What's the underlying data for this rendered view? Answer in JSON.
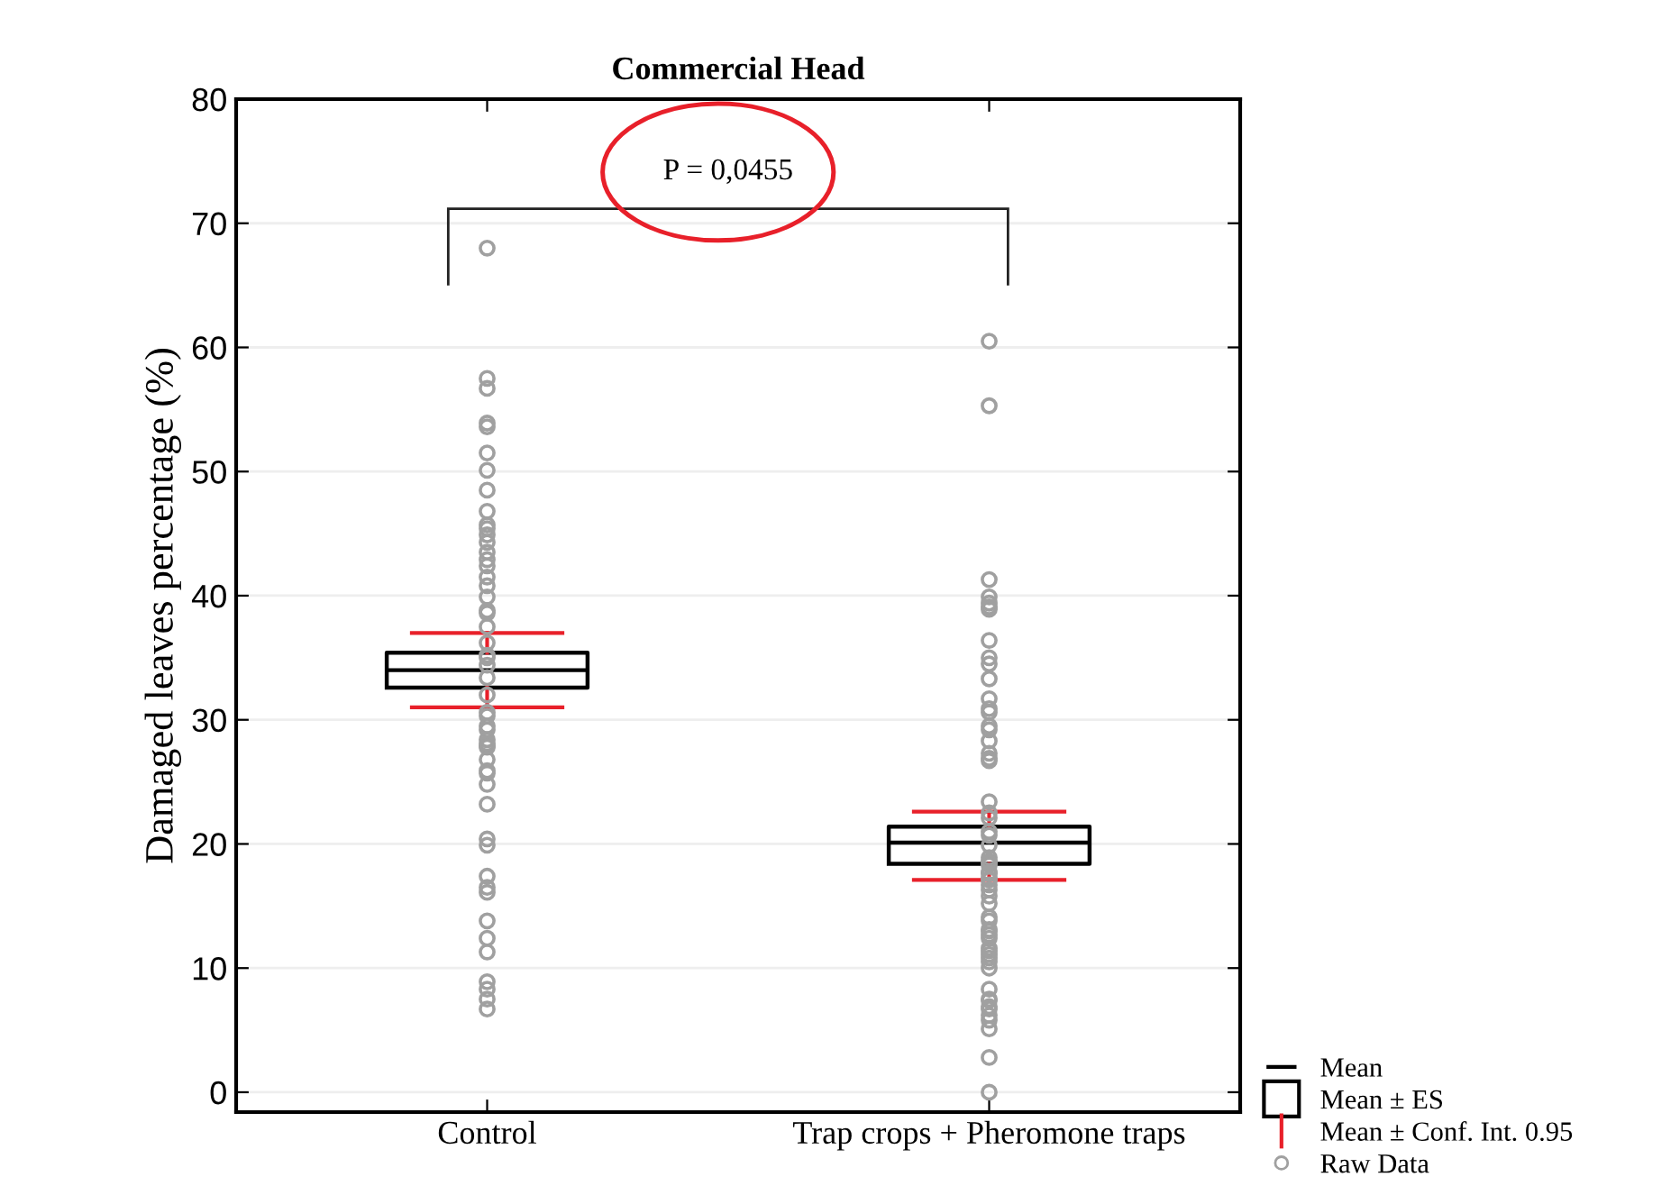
{
  "chart_data": {
    "type": "box",
    "title": "Commercial Head",
    "ylabel": "Damaged leaves percentage (%)",
    "categories": [
      "Control",
      "Trap crops + Pheromone traps"
    ],
    "ylim": [
      -1.6,
      80
    ],
    "yticks": [
      0,
      10,
      20,
      30,
      40,
      50,
      60,
      70,
      80
    ],
    "grid": "y",
    "legend": "bottom right",
    "annotations": [
      "P = 0,0455",
      "Mean",
      "Mean ± Conf. Int. 0.95"
    ],
    "series": [
      {
        "name": "Mean ± ES",
        "color": "#000000",
        "boxes": [
          {
            "low": 31.0,
            "q1": 32.6,
            "median": 34.0,
            "q3": 35.4,
            "high": 37.0
          },
          {
            "low": 17.1,
            "q1": 18.4,
            "median": 20.1,
            "q3": 21.4,
            "high": 22.6
          }
        ]
      },
      {
        "name": "Raw Data",
        "type": "scatter",
        "marker": "circle",
        "color": "#a0a0a0",
        "x": [
          "Control",
          "Control",
          "Control",
          "Control",
          "Control",
          "Control",
          "Control",
          "Control",
          "Control",
          "Control",
          "Control",
          "Control",
          "Control",
          "Control",
          "Control",
          "Control",
          "Control",
          "Control",
          "Control",
          "Control",
          "Control",
          "Control",
          "Control",
          "Control",
          "Control",
          "Control",
          "Control",
          "Control",
          "Control",
          "Control",
          "Control",
          "Control",
          "Control",
          "Control",
          "Control",
          "Control",
          "Control",
          "Control",
          "Control",
          "Control",
          "Control",
          "Control",
          "Control",
          "Control",
          "Control",
          "Control",
          "Control",
          "Control",
          "Control",
          "Control",
          "Control",
          "Control",
          "Control",
          "Trap crops + Pheromone traps",
          "Trap crops + Pheromone traps",
          "Trap crops + Pheromone traps",
          "Trap crops + Pheromone traps",
          "Trap crops + Pheromone traps",
          "Trap crops + Pheromone traps",
          "Trap crops + Pheromone traps",
          "Trap crops + Pheromone traps",
          "Trap crops + Pheromone traps",
          "Trap crops + Pheromone traps",
          "Trap crops + Pheromone traps",
          "Trap crops + Pheromone traps",
          "Trap crops + Pheromone traps",
          "Trap crops + Pheromone traps",
          "Trap crops + Pheromone traps",
          "Trap crops + Pheromone traps",
          "Trap crops + Pheromone traps",
          "Trap crops + Pheromone traps",
          "Trap crops + Pheromone traps",
          "Trap crops + Pheromone traps",
          "Trap crops + Pheromone traps",
          "Trap crops + Pheromone traps",
          "Trap crops + Pheromone traps",
          "Trap crops + Pheromone traps",
          "Trap crops + Pheromone traps",
          "Trap crops + Pheromone traps",
          "Trap crops + Pheromone traps",
          "Trap crops + Pheromone traps",
          "Trap crops + Pheromone traps",
          "Trap crops + Pheromone traps",
          "Trap crops + Pheromone traps",
          "Trap crops + Pheromone traps",
          "Trap crops + Pheromone traps",
          "Trap crops + Pheromone traps",
          "Trap crops + Pheromone traps",
          "Trap crops + Pheromone traps",
          "Trap crops + Pheromone traps",
          "Trap crops + Pheromone traps",
          "Trap crops + Pheromone traps",
          "Trap crops + Pheromone traps",
          "Trap crops + Pheromone traps",
          "Trap crops + Pheromone traps",
          "Trap crops + Pheromone traps",
          "Trap crops + Pheromone traps",
          "Trap crops + Pheromone traps",
          "Trap crops + Pheromone traps",
          "Trap crops + Pheromone traps",
          "Trap crops + Pheromone traps",
          "Trap crops + Pheromone traps",
          "Trap crops + Pheromone traps",
          "Trap crops + Pheromone traps",
          "Trap crops + Pheromone traps",
          "Trap crops + Pheromone traps",
          "Trap crops + Pheromone traps",
          "Trap crops + Pheromone traps",
          "Trap crops + Pheromone traps",
          "Trap crops + Pheromone traps",
          "Trap crops + Pheromone traps",
          "Trap crops + Pheromone traps",
          "Trap crops + Pheromone traps"
        ],
        "values": [
          68.0,
          57.5,
          56.7,
          53.6,
          53.9,
          50.1,
          51.5,
          48.5,
          46.8,
          45.7,
          44.3,
          45.4,
          44.9,
          42.9,
          43.5,
          42.4,
          41.5,
          40.8,
          39.9,
          38.8,
          38.6,
          37.5,
          36.2,
          35.2,
          35.0,
          34.4,
          33.4,
          32.0,
          30.6,
          30.3,
          29.5,
          29.2,
          28.4,
          27.9,
          28.1,
          27.8,
          26.8,
          25.7,
          24.8,
          25.9,
          23.2,
          19.9,
          20.4,
          17.4,
          16.5,
          16.1,
          13.8,
          12.4,
          11.3,
          8.9,
          8.3,
          7.5,
          6.7,
          60.5,
          55.3,
          41.3,
          39.1,
          39.4,
          39.9,
          38.9,
          36.4,
          34.5,
          35.0,
          33.3,
          31.7,
          30.9,
          30.6,
          29.2,
          29.5,
          28.3,
          27.3,
          26.9,
          26.7,
          23.4,
          22.1,
          22.5,
          21.0,
          20.7,
          19.9,
          18.9,
          18.6,
          18.3,
          18.5,
          17.2,
          16.3,
          17.7,
          17.6,
          16.7,
          15.8,
          17.1,
          15.2,
          14.1,
          12.7,
          12.4,
          11.1,
          11.4,
          10.0,
          10.5,
          13.0,
          13.8,
          13.1,
          11.6,
          10.8,
          8.3,
          7.4,
          7.5,
          6.2,
          6.7,
          5.8,
          6.9,
          5.1,
          2.8,
          0.0
        ]
      }
    ]
  }
}
